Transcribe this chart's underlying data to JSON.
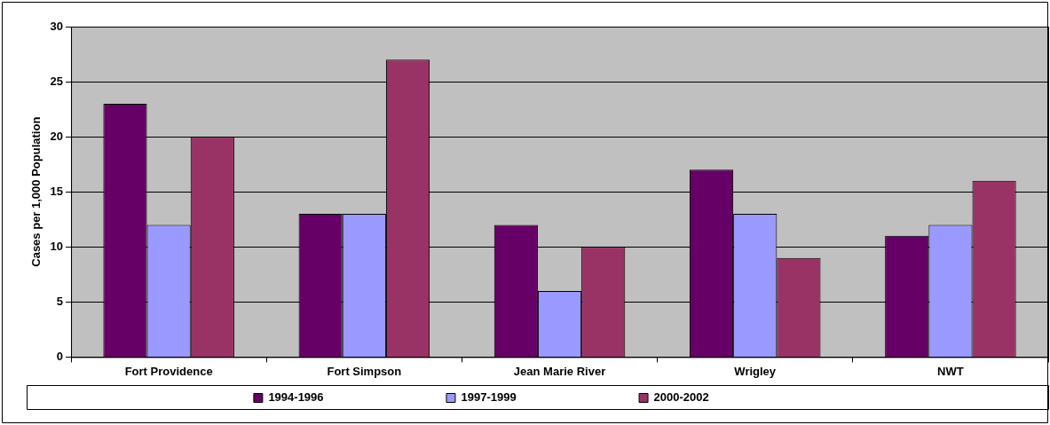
{
  "chart_data": {
    "type": "bar",
    "ylabel": "Cases per 1,000 Population",
    "categories": [
      "Fort Providence",
      "Fort Simpson",
      "Jean Marie River",
      "Wrigley",
      "NWT"
    ],
    "series": [
      {
        "name": "1994-1996",
        "color": "#660066",
        "values": [
          23,
          13,
          12,
          17,
          11
        ]
      },
      {
        "name": "1997-1999",
        "color": "#9999ff",
        "values": [
          12,
          13,
          6,
          13,
          12
        ]
      },
      {
        "name": "2000-2002",
        "color": "#993366",
        "values": [
          20,
          27,
          10,
          9,
          16
        ]
      }
    ],
    "ylim": [
      0,
      30
    ],
    "yticks": [
      0,
      5,
      10,
      15,
      20,
      25,
      30
    ],
    "grid": "y",
    "legend": "bottom"
  }
}
